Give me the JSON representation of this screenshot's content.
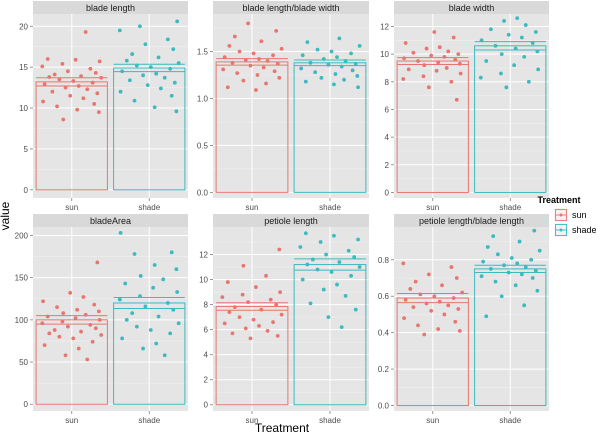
{
  "chart_data": {
    "type": "bar",
    "xlabel": "Treatment",
    "ylabel": "value",
    "categories": [
      "sun",
      "shade"
    ],
    "legend": {
      "title": "Treatment",
      "position": "right",
      "items": [
        {
          "label": "sun",
          "color": "#E8766F"
        },
        {
          "label": "shade",
          "color": "#3DB9C0"
        }
      ]
    },
    "grid": true,
    "panels": [
      {
        "title": "blade length",
        "ylim": [
          -1,
          21.5
        ],
        "yticks": [
          0,
          5,
          10,
          15,
          20
        ],
        "bars": {
          "sun": 13.2,
          "shade": 14.9
        },
        "err": {
          "sun": 0.5,
          "shade": 0.45
        },
        "points": {
          "sun": [
            19.3,
            16.0,
            15.9,
            15.7,
            15.4,
            15.1,
            14.8,
            14.5,
            14.3,
            14.1,
            13.9,
            13.8,
            13.7,
            13.5,
            13.3,
            13.1,
            12.9,
            12.7,
            12.5,
            12.3,
            12.0,
            11.8,
            11.5,
            11.2,
            10.8,
            10.5,
            10.2,
            9.8,
            9.5,
            8.6
          ],
          "shade": [
            20.6,
            20.0,
            19.5,
            18.4,
            17.8,
            17.2,
            16.6,
            16.2,
            15.8,
            15.5,
            15.2,
            15.0,
            14.8,
            14.5,
            14.2,
            14.0,
            13.7,
            13.4,
            13.1,
            12.8,
            12.4,
            12.0,
            11.5,
            10.9,
            10.1,
            9.6
          ]
        }
      },
      {
        "title": "blade length/blade width",
        "ylim": [
          -0.06,
          1.9
        ],
        "yticks": [
          0.0,
          0.5,
          1.0,
          1.5
        ],
        "tick_decimals": 1,
        "bars": {
          "sun": 1.39,
          "shade": 1.38
        },
        "err": {
          "sun": 0.035,
          "shade": 0.03
        },
        "points": {
          "sun": [
            1.8,
            1.72,
            1.66,
            1.61,
            1.56,
            1.53,
            1.5,
            1.48,
            1.46,
            1.44,
            1.42,
            1.41,
            1.4,
            1.38,
            1.37,
            1.35,
            1.33,
            1.31,
            1.29,
            1.27,
            1.25,
            1.22,
            1.19,
            1.16,
            1.12,
            1.09
          ],
          "shade": [
            1.64,
            1.6,
            1.56,
            1.52,
            1.5,
            1.48,
            1.46,
            1.44,
            1.42,
            1.4,
            1.38,
            1.37,
            1.36,
            1.34,
            1.32,
            1.3,
            1.28,
            1.26,
            1.24,
            1.22,
            1.2,
            1.18,
            1.15,
            1.12
          ]
        }
      },
      {
        "title": "blade width",
        "ylim": [
          -0.4,
          12.9
        ],
        "yticks": [
          0,
          2,
          4,
          6,
          8,
          10,
          12
        ],
        "bars": {
          "sun": 9.5,
          "shade": 10.6
        },
        "err": {
          "sun": 0.25,
          "shade": 0.3
        },
        "points": {
          "sun": [
            11.6,
            11.2,
            10.8,
            10.5,
            10.4,
            10.2,
            10.1,
            10.0,
            9.9,
            9.8,
            9.7,
            9.6,
            9.5,
            9.4,
            9.3,
            9.2,
            9.0,
            8.9,
            8.8,
            8.6,
            8.4,
            8.2,
            8.0,
            7.6,
            6.7
          ],
          "shade": [
            12.6,
            12.4,
            12.1,
            11.8,
            11.6,
            11.4,
            11.2,
            11.0,
            10.8,
            10.6,
            10.4,
            10.2,
            10.0,
            9.8,
            9.5,
            9.2,
            8.9,
            8.6,
            8.3,
            8.0,
            7.6
          ]
        }
      },
      {
        "title": "bladeArea",
        "ylim": [
          -8,
          210
        ],
        "yticks": [
          0,
          50,
          100,
          150,
          200
        ],
        "bars": {
          "sun": 100,
          "shade": 120
        },
        "err": {
          "sun": 5,
          "shade": 6.5
        },
        "points": {
          "sun": [
            168,
            132,
            127,
            122,
            118,
            115,
            112,
            110,
            108,
            106,
            104,
            102,
            100,
            98,
            96,
            94,
            92,
            90,
            88,
            86,
            84,
            82,
            80,
            78,
            74,
            70,
            66,
            58,
            53
          ],
          "shade": [
            203,
            180,
            178,
            165,
            160,
            152,
            148,
            143,
            138,
            133,
            128,
            124,
            120,
            116,
            112,
            108,
            104,
            100,
            96,
            92,
            88,
            84,
            78,
            72,
            66,
            58
          ]
        }
      },
      {
        "title": "petiole length",
        "ylim": [
          -0.5,
          14.2
        ],
        "yticks": [
          0,
          2,
          4,
          6,
          8,
          10,
          12
        ],
        "bars": {
          "sun": 7.85,
          "shade": 11.2
        },
        "err": {
          "sun": 0.3,
          "shade": 0.45
        },
        "points": {
          "sun": [
            12.4,
            11.1,
            10.3,
            9.8,
            9.4,
            9.0,
            8.8,
            8.6,
            8.4,
            8.2,
            8.0,
            7.8,
            7.6,
            7.4,
            7.2,
            7.0,
            6.8,
            6.6,
            6.5,
            6.3,
            6.1,
            5.9,
            5.7,
            5.5,
            5.3
          ],
          "shade": [
            13.7,
            13.5,
            13.2,
            13.0,
            12.6,
            12.3,
            12.0,
            11.8,
            11.6,
            11.4,
            11.2,
            11.0,
            10.8,
            10.6,
            10.3,
            10.0,
            9.6,
            9.2,
            8.7,
            8.1,
            7.6,
            7.0,
            6.2
          ]
        }
      },
      {
        "title": "petiole length/blade length",
        "ylim": [
          -0.03,
          0.98
        ],
        "yticks": [
          0.0,
          0.2,
          0.4,
          0.6,
          0.8
        ],
        "tick_decimals": 1,
        "bars": {
          "sun": 0.59,
          "shade": 0.75
        },
        "err": {
          "sun": 0.025,
          "shade": 0.02
        },
        "points": {
          "sun": [
            0.78,
            0.76,
            0.72,
            0.7,
            0.68,
            0.66,
            0.64,
            0.62,
            0.61,
            0.6,
            0.59,
            0.58,
            0.57,
            0.56,
            0.55,
            0.54,
            0.53,
            0.52,
            0.5,
            0.48,
            0.46,
            0.44,
            0.42,
            0.41,
            0.39
          ],
          "shade": [
            0.96,
            0.93,
            0.9,
            0.87,
            0.85,
            0.83,
            0.81,
            0.8,
            0.79,
            0.78,
            0.77,
            0.76,
            0.75,
            0.74,
            0.73,
            0.72,
            0.71,
            0.7,
            0.68,
            0.66,
            0.63,
            0.6,
            0.55,
            0.49
          ]
        }
      }
    ]
  }
}
